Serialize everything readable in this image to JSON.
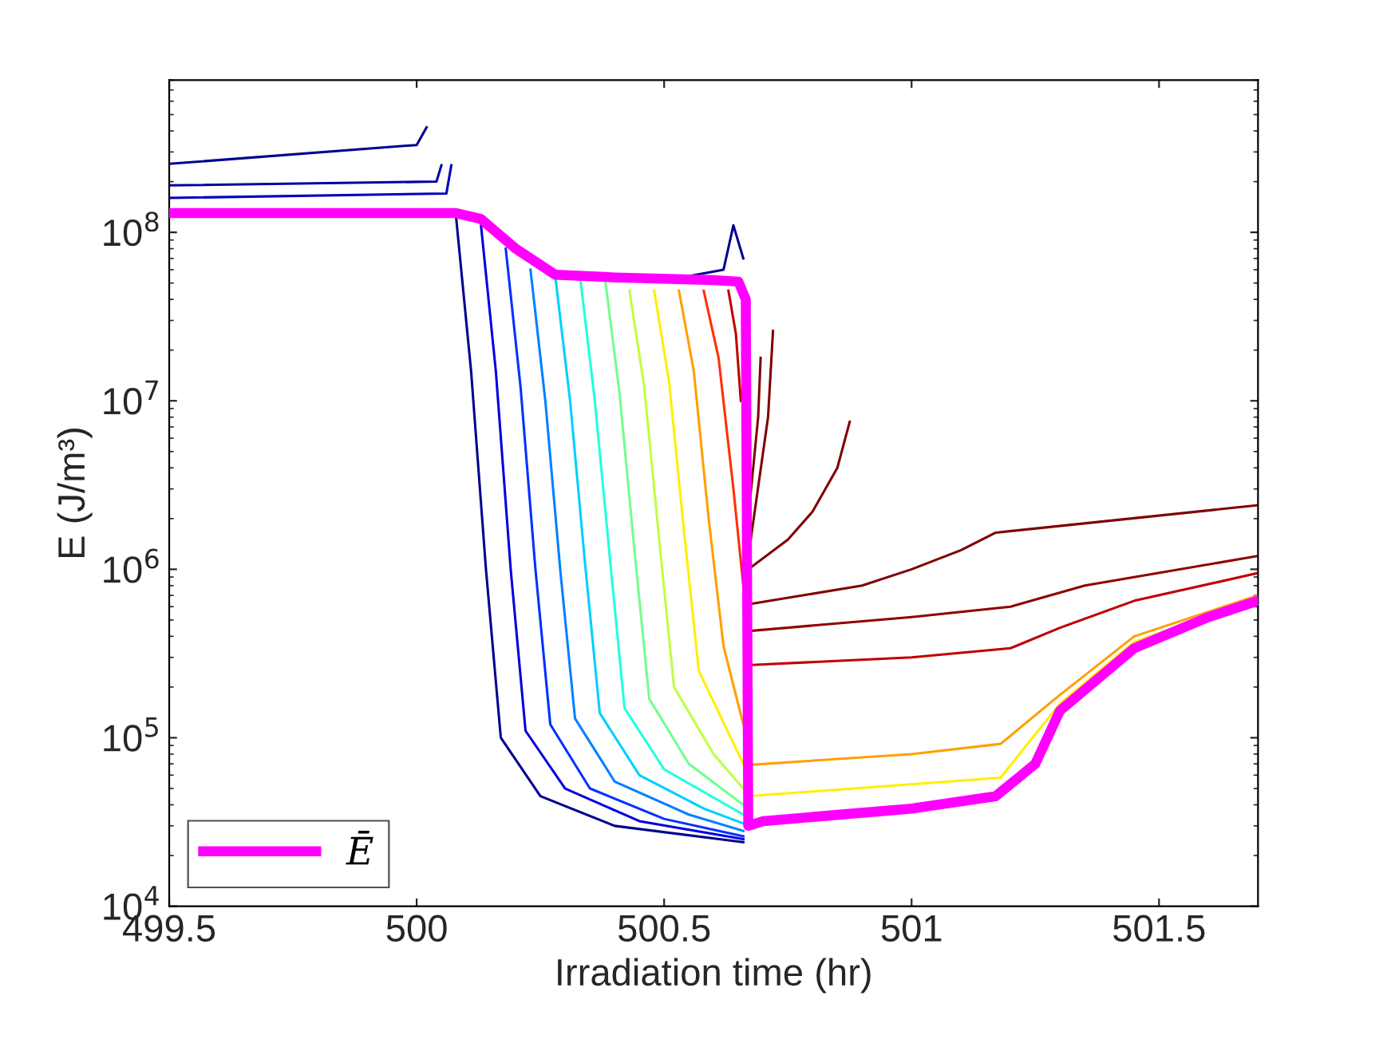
{
  "chart_data": {
    "type": "line",
    "xlabel": "Irradiation time (hr)",
    "ylabel": "E (J/m³)",
    "log": "y",
    "grid": false,
    "legend": "bottom left",
    "marker": "none",
    "line_style": "solid",
    "xlim": [
      499.5,
      501.7
    ],
    "xticks": [
      499.5,
      500,
      500.5,
      501,
      501.5
    ],
    "ylim": [
      10000,
      800000000
    ],
    "yticks": [
      {
        "value": 10000,
        "label": "10$^{4}$"
      },
      {
        "value": 100000,
        "label": "10$^{5}$"
      },
      {
        "value": 1000000,
        "label": "10$^{6}$"
      },
      {
        "value": 10000000,
        "label": "10$^{7}$"
      },
      {
        "value": 100000000,
        "label": "10$^{8}$"
      }
    ],
    "series": [
      {
        "color": "#00008f",
        "x": [
          499.5,
          500.0,
          500.02
        ],
        "values": [
          255000000,
          330000000,
          420000000
        ]
      },
      {
        "color": "#00009f",
        "x": [
          499.5,
          500.04,
          500.05
        ],
        "values": [
          190000000,
          200000000,
          250000000
        ]
      },
      {
        "color": "#0000bf",
        "x": [
          499.5,
          500.06,
          500.07
        ],
        "values": [
          160000000,
          170000000,
          250000000
        ]
      },
      {
        "color": "#00008f",
        "x": [
          500.55,
          500.62,
          500.64,
          500.66
        ],
        "values": [
          55000000,
          60000000,
          110000000,
          70000000
        ]
      },
      {
        "color": "#00008f",
        "x": [
          500.08,
          500.11,
          500.14,
          500.17,
          500.25,
          500.4,
          500.66
        ],
        "values": [
          120000000,
          15000000,
          1000000,
          100000,
          45000,
          30000,
          24000
        ]
      },
      {
        "color": "#0000df",
        "x": [
          500.13,
          500.16,
          500.19,
          500.22,
          500.3,
          500.45,
          500.66
        ],
        "values": [
          110000000,
          15000000,
          1000000,
          110000,
          50000,
          32000,
          25000
        ]
      },
      {
        "color": "#0030ff",
        "x": [
          500.18,
          500.21,
          500.24,
          500.27,
          500.35,
          500.5,
          500.66
        ],
        "values": [
          80000000,
          12000000,
          1000000,
          120000,
          50000,
          33000,
          26000
        ]
      },
      {
        "color": "#0080ff",
        "x": [
          500.23,
          500.26,
          500.29,
          500.32,
          500.4,
          500.55,
          500.66
        ],
        "values": [
          60000000,
          10000000,
          1000000,
          130000,
          55000,
          35000,
          28000
        ]
      },
      {
        "color": "#00cfff",
        "x": [
          500.28,
          500.31,
          500.34,
          500.37,
          500.45,
          500.58,
          500.66
        ],
        "values": [
          55000000,
          10000000,
          1100000,
          140000,
          60000,
          38000,
          31000
        ]
      },
      {
        "color": "#20ffdf",
        "x": [
          500.33,
          500.36,
          500.39,
          500.42,
          500.5,
          500.66
        ],
        "values": [
          55000000,
          10000000,
          1200000,
          150000,
          65000,
          35000
        ]
      },
      {
        "color": "#70ff8f",
        "x": [
          500.38,
          500.41,
          500.44,
          500.47,
          500.55,
          500.66
        ],
        "values": [
          55000000,
          11000000,
          1300000,
          170000,
          70000,
          40000
        ]
      },
      {
        "color": "#bfff40",
        "x": [
          500.43,
          500.46,
          500.49,
          500.52,
          500.6,
          500.66
        ],
        "values": [
          45000000,
          12000000,
          1500000,
          200000,
          80000,
          50000
        ]
      },
      {
        "color": "#ffef00",
        "x": [
          500.48,
          500.51,
          500.54,
          500.57,
          500.66
        ],
        "values": [
          45000000,
          13000000,
          1700000,
          250000,
          70000
        ]
      },
      {
        "color": "#ff9f00",
        "x": [
          500.53,
          500.56,
          500.59,
          500.62,
          500.66
        ],
        "values": [
          45000000,
          15000000,
          2000000,
          350000,
          120000
        ]
      },
      {
        "color": "#ff3000",
        "x": [
          500.58,
          500.61,
          500.64,
          500.66
        ],
        "values": [
          45000000,
          18000000,
          3000000,
          800000
        ]
      },
      {
        "color": "#c00000",
        "x": [
          500.63,
          500.645,
          500.655
        ],
        "values": [
          45000000,
          25000000,
          10000000
        ]
      },
      {
        "color": "#800000",
        "x": [
          500.67,
          500.69,
          500.695
        ],
        "values": [
          2000000,
          8000000,
          18000000
        ]
      },
      {
        "color": "#800000",
        "x": [
          500.675,
          500.71,
          500.72
        ],
        "values": [
          1500000,
          8000000,
          26000000
        ]
      },
      {
        "color": "#800000",
        "x": [
          500.67,
          500.75,
          500.8,
          500.85,
          500.875
        ],
        "values": [
          1000000,
          1500000,
          2200000,
          4000000,
          7500000
        ]
      },
      {
        "color": "#800000",
        "x": [
          500.67,
          500.9,
          501.0,
          501.1,
          501.17,
          501.7
        ],
        "values": [
          620000,
          800000,
          1000000,
          1300000,
          1650000,
          2400000
        ]
      },
      {
        "color": "#900000",
        "x": [
          500.67,
          501.0,
          501.2,
          501.35,
          501.7
        ],
        "values": [
          430000,
          520000,
          600000,
          800000,
          1200000
        ]
      },
      {
        "color": "#c00000",
        "x": [
          500.67,
          501.0,
          501.2,
          501.3,
          501.45,
          501.7
        ],
        "values": [
          270000,
          300000,
          340000,
          450000,
          650000,
          950000
        ]
      },
      {
        "color": "#ff9f00",
        "x": [
          500.67,
          501.0,
          501.18,
          501.3,
          501.45,
          501.7
        ],
        "values": [
          69000,
          80000,
          92000,
          180000,
          400000,
          700000
        ]
      },
      {
        "color": "#ffef00",
        "x": [
          500.67,
          501.0,
          501.18,
          501.3,
          501.45,
          501.7
        ],
        "values": [
          45000,
          53000,
          58000,
          160000,
          370000,
          680000
        ]
      },
      {
        "name": "Ē",
        "color": "#ff00ff",
        "x": [
          499.5,
          500.08,
          500.13,
          500.2,
          500.28,
          500.4,
          500.6,
          500.65,
          500.665,
          500.67,
          500.7,
          501.0,
          501.17,
          501.25,
          501.3,
          501.45,
          501.6,
          501.7
        ],
        "values": [
          130000000,
          130000000,
          120000000,
          80000000,
          56000000,
          54000000,
          52000000,
          51000000,
          40000000,
          30000,
          32000,
          38000,
          45000,
          70000,
          145000,
          340000,
          520000,
          650000
        ]
      }
    ]
  }
}
